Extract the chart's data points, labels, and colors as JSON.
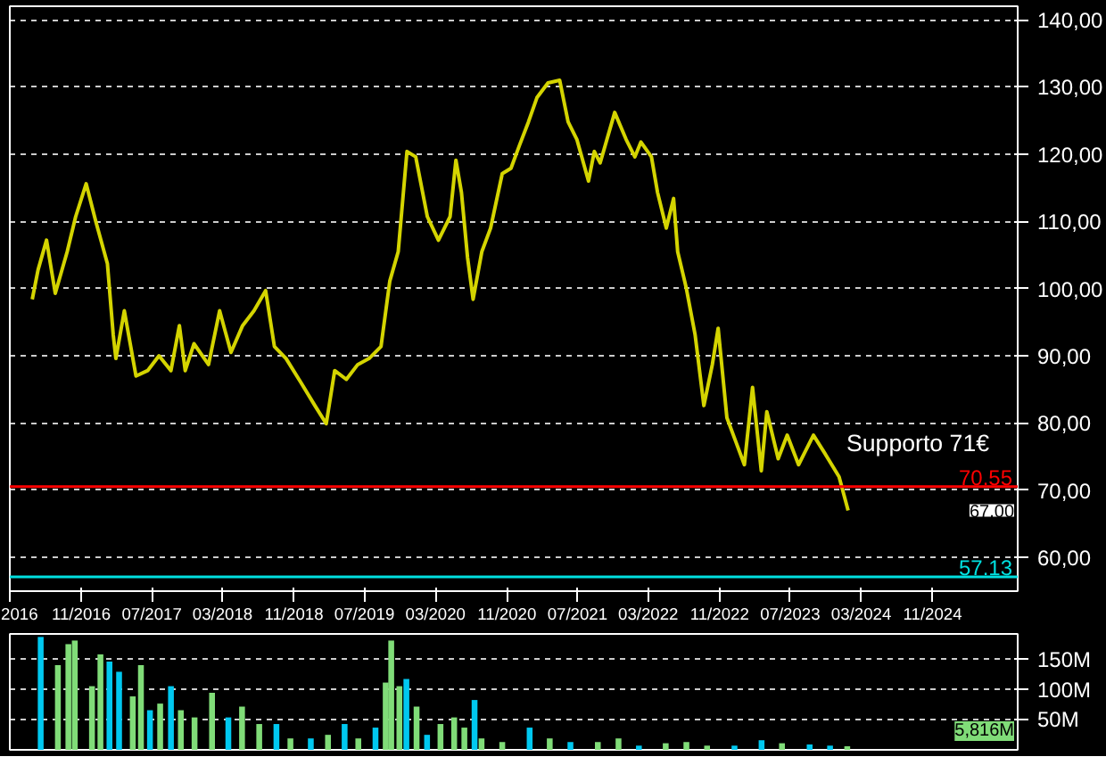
{
  "chart_data": [
    {
      "type": "line",
      "xlim": [
        "2016-03-01",
        "2025-08-20"
      ],
      "ylim": [
        55,
        142
      ],
      "xticks": [
        {
          "value": "2016-03",
          "label": "2016"
        },
        {
          "value": "2016-11",
          "label": "11/2016"
        },
        {
          "value": "2017-07",
          "label": "07/2017"
        },
        {
          "value": "2018-03",
          "label": "03/2018"
        },
        {
          "value": "2018-11",
          "label": "11/2018"
        },
        {
          "value": "2019-07",
          "label": "07/2019"
        },
        {
          "value": "2020-03",
          "label": "03/2020"
        },
        {
          "value": "2020-11",
          "label": "11/2020"
        },
        {
          "value": "2021-07",
          "label": "07/2021"
        },
        {
          "value": "2022-03",
          "label": "03/2022"
        },
        {
          "value": "2022-11",
          "label": "11/2022"
        },
        {
          "value": "2023-07",
          "label": "07/2023"
        },
        {
          "value": "2024-03",
          "label": "03/2024"
        },
        {
          "value": "2024-11",
          "label": "11/2024"
        }
      ],
      "yticks": [
        {
          "value": 60,
          "label": "60,00"
        },
        {
          "value": 70,
          "label": "70,00"
        },
        {
          "value": 80,
          "label": "80,00"
        },
        {
          "value": 90,
          "label": "90,00"
        },
        {
          "value": 100,
          "label": "100,00"
        },
        {
          "value": 110,
          "label": "110,00"
        },
        {
          "value": 120,
          "label": "120,00"
        },
        {
          "value": 130,
          "label": "130,00"
        },
        {
          "value": 140,
          "label": "140,00"
        }
      ],
      "grid": "y",
      "series": [
        {
          "color": "#d4d400",
          "x": [
            "2016-05-17",
            "2016-06-06",
            "2016-07-05",
            "2016-08-04",
            "2016-09-14",
            "2016-10-13",
            "2016-11-18",
            "2016-12-21",
            "2017-01-30",
            "2017-02-19",
            "2017-02-28",
            "2017-03-29",
            "2017-05-08",
            "2017-06-17",
            "2017-07-26",
            "2017-09-05",
            "2017-10-04",
            "2017-10-24",
            "2017-11-23",
            "2018-01-12",
            "2018-02-19",
            "2018-03-30",
            "2018-05-09",
            "2018-06-17",
            "2018-07-27",
            "2018-08-26",
            "2018-10-05",
            "2018-11-24",
            "2019-01-12",
            "2019-02-20",
            "2019-03-21",
            "2019-04-30",
            "2019-06-08",
            "2019-07-17",
            "2019-08-27",
            "2019-09-26",
            "2019-10-25",
            "2019-11-24",
            "2019-12-24",
            "2020-02-02",
            "2020-03-11",
            "2020-04-20",
            "2020-05-10",
            "2020-05-29",
            "2020-06-19",
            "2020-07-08",
            "2020-08-07",
            "2020-09-06",
            "2020-10-16",
            "2020-11-15",
            "2020-12-14",
            "2021-01-14",
            "2021-02-12",
            "2021-03-22",
            "2021-05-01",
            "2021-05-30",
            "2021-06-29",
            "2021-08-08",
            "2021-08-28",
            "2021-09-17",
            "2021-11-06",
            "2021-12-15",
            "2022-01-14",
            "2022-02-04",
            "2022-03-12",
            "2022-04-02",
            "2022-05-02",
            "2022-05-27",
            "2022-06-10",
            "2022-07-09",
            "2022-08-09",
            "2022-09-08",
            "2022-10-07",
            "2022-10-27",
            "2022-11-26",
            "2022-12-26",
            "2023-01-25",
            "2023-02-22",
            "2023-03-24",
            "2023-04-12",
            "2023-05-21",
            "2023-06-21",
            "2023-07-30",
            "2023-09-19",
            "2023-10-28",
            "2023-12-16",
            "2024-01-16"
          ],
          "values": [
            98.4,
            102.8,
            107.2,
            99.3,
            105.5,
            110.7,
            115.6,
            110,
            103.7,
            93.1,
            89.6,
            96.7,
            87,
            87.8,
            90,
            87.8,
            94.5,
            87.8,
            91.8,
            88.7,
            96.7,
            90.5,
            94.5,
            96.7,
            99.7,
            91.4,
            89.6,
            86.1,
            82.6,
            79.9,
            87.8,
            86.5,
            88.7,
            89.6,
            91.4,
            101.1,
            105.5,
            120.4,
            119.6,
            110.7,
            107.2,
            110.7,
            119.1,
            114.3,
            104.6,
            98.4,
            105.5,
            109,
            117.1,
            117.9,
            121.3,
            124.8,
            128.4,
            130.6,
            131,
            124.8,
            122.2,
            116,
            120.4,
            118.7,
            126.2,
            122.2,
            119.6,
            121.8,
            119.6,
            114.3,
            109,
            113.4,
            105.5,
            100.2,
            93.1,
            82.6,
            88.7,
            94.1,
            80.8,
            77.3,
            73.8,
            85.3,
            72.9,
            81.7,
            74.7,
            78.2,
            73.8,
            78.2,
            75.5,
            72,
            67
          ]
        }
      ],
      "ref_lines": [
        {
          "axis": "y",
          "value": 70.55,
          "label": "70.55",
          "color": "#ff0000"
        },
        {
          "axis": "y",
          "value": 57.13,
          "label": "57.13",
          "color": "#00e0e0"
        }
      ],
      "annotations": [
        "Supporto 71€",
        "67,00"
      ]
    },
    {
      "type": "bar",
      "xlim": [
        "2016-03-01",
        "2025-08-20"
      ],
      "ylim": [
        0,
        193
      ],
      "tick_labels": "y",
      "grid": "y",
      "yticks": [
        {
          "value": 50,
          "label": "50M"
        },
        {
          "value": 100,
          "label": "100M"
        },
        {
          "value": 150,
          "label": "150M"
        }
      ],
      "x": [
        "2016-06-15",
        "2016-08-13",
        "2016-09-18",
        "2016-10-10",
        "2016-12-08",
        "2017-01-06",
        "2017-02-06",
        "2017-03-11",
        "2017-04-27",
        "2017-05-25",
        "2017-06-25",
        "2017-07-30",
        "2017-09-05",
        "2017-10-09",
        "2017-11-25",
        "2018-01-24",
        "2018-03-21",
        "2018-05-07",
        "2018-07-05",
        "2018-09-02",
        "2018-10-20",
        "2018-12-29",
        "2019-02-26",
        "2019-04-24",
        "2019-06-10",
        "2019-08-08",
        "2019-09-12",
        "2019-10-01",
        "2019-10-29",
        "2019-11-22",
        "2019-12-27",
        "2020-02-01",
        "2020-03-18",
        "2020-05-04",
        "2020-06-08",
        "2020-07-13",
        "2020-08-06",
        "2020-10-16",
        "2021-01-18",
        "2021-03-28",
        "2021-06-07",
        "2021-09-09",
        "2021-11-19",
        "2022-01-28",
        "2022-04-30",
        "2022-07-10",
        "2022-09-19",
        "2022-12-22",
        "2023-03-25",
        "2023-06-03",
        "2023-09-06",
        "2023-11-15",
        "2024-01-13"
      ],
      "values": [
        188,
        141,
        176,
        182,
        106,
        159,
        147,
        130,
        89,
        141,
        66,
        77,
        106,
        66,
        54,
        95,
        54,
        72,
        43,
        43,
        19,
        19,
        25,
        43,
        19,
        37,
        112,
        182,
        106,
        118,
        72,
        25,
        43,
        54,
        37,
        83,
        19,
        13,
        37,
        19,
        13,
        13,
        19,
        7,
        11,
        13,
        7,
        7,
        16,
        11,
        9,
        7,
        6
      ],
      "colors": [
        "#00c8f0",
        "#80dc78",
        "#80dc78",
        "#80dc78",
        "#80dc78",
        "#80dc78",
        "#00c8f0",
        "#00c8f0",
        "#80dc78",
        "#80dc78",
        "#00c8f0",
        "#80dc78",
        "#00c8f0",
        "#80dc78",
        "#80dc78",
        "#80dc78",
        "#00c8f0",
        "#80dc78",
        "#80dc78",
        "#00c8f0",
        "#80dc78",
        "#00c8f0",
        "#80dc78",
        "#00c8f0",
        "#80dc78",
        "#00c8f0",
        "#80dc78",
        "#80dc78",
        "#80dc78",
        "#00c8f0",
        "#80dc78",
        "#00c8f0",
        "#80dc78",
        "#80dc78",
        "#80dc78",
        "#00c8f0",
        "#80dc78",
        "#80dc78",
        "#00c8f0",
        "#80dc78",
        "#00c8f0",
        "#80dc78",
        "#80dc78",
        "#00c8f0",
        "#80dc78",
        "#80dc78",
        "#80dc78",
        "#00c8f0",
        "#00c8f0",
        "#80dc78",
        "#00c8f0",
        "#00c8f0",
        "#80dc78"
      ],
      "annotations": [
        "5,816M"
      ]
    }
  ]
}
